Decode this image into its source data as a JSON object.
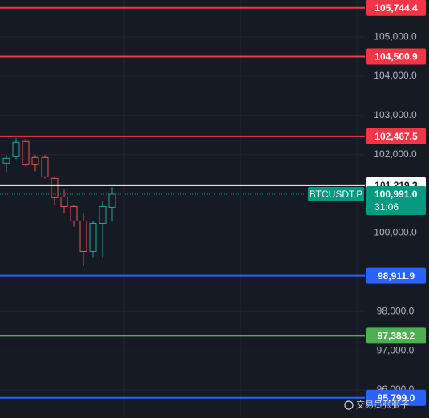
{
  "chart_data": {
    "type": "candlestick",
    "ylim": [
      95283,
      105943
    ],
    "yticks": [
      {
        "value": 105000,
        "label": "105,000.0"
      },
      {
        "value": 104000,
        "label": "104,000.0"
      },
      {
        "value": 103000,
        "label": "103,000.0"
      },
      {
        "value": 102000,
        "label": "102,000.0"
      },
      {
        "value": 100000,
        "label": "100,000.0"
      },
      {
        "value": 98000,
        "label": "98,000.0"
      },
      {
        "value": 97000,
        "label": "97,000.0"
      },
      {
        "value": 96000,
        "label": "96,000.0"
      }
    ],
    "grid": true,
    "up_color": "#26a69a",
    "down_color": "#ef5350",
    "open": [
      101783,
      101947,
      102336,
      101926,
      101926,
      101393,
      100922,
      100676,
      100307,
      99529,
      100246,
      100656
    ],
    "high": [
      101988,
      102418,
      102398,
      101988,
      101988,
      101434,
      101107,
      100717,
      100512,
      100307,
      100820,
      101168
    ],
    "low": [
      101537,
      101885,
      101701,
      101578,
      101393,
      100717,
      100512,
      100164,
      99180,
      99385,
      99385,
      100307
    ],
    "close": [
      101906,
      102316,
      101742,
      101742,
      101434,
      100902,
      100676,
      100307,
      99529,
      100246,
      100676,
      100991
    ],
    "price_lines": [
      {
        "value": 105744.4,
        "label": "105,744.4",
        "color": "#f23645"
      },
      {
        "value": 104500.9,
        "label": "104,500.9",
        "color": "#f23645"
      },
      {
        "value": 102467.5,
        "label": "102,467.5",
        "color": "#f23645"
      },
      {
        "value": 101219.3,
        "label": "101,219.3",
        "color": "#ffffff"
      },
      {
        "value": 98911.9,
        "label": "98,911.9",
        "color": "#2962ff"
      },
      {
        "value": 97383.2,
        "label": "97,383.2",
        "color": "#4caf50"
      },
      {
        "value": 95799.0,
        "label": "95,799.0",
        "color": "#2962ff"
      }
    ],
    "last_price": {
      "value": 100991.0,
      "label": "100,991.0",
      "symbol": "BTCUSDT.P",
      "countdown": "31:06",
      "color": "#089981"
    },
    "watermark": "交易员张张子"
  }
}
